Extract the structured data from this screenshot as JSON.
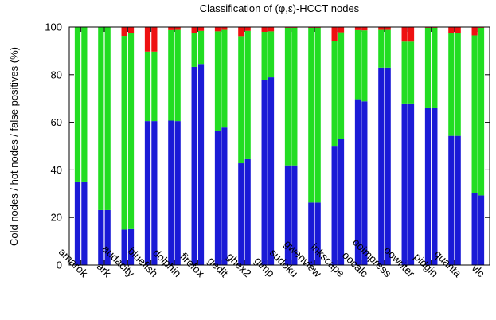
{
  "chart_data": {
    "type": "bar",
    "stacked": true,
    "title": "Classification of (φ,ε)-HCCT nodes",
    "ylabel": "Cold nodes / hot nodes / false positives (%)",
    "xlabel": "",
    "ylim": [
      0,
      100
    ],
    "yticks": [
      0,
      20,
      40,
      60,
      80,
      100
    ],
    "grid": false,
    "colors": {
      "cold": "#1a1ad6",
      "hot": "#22dd22",
      "false_positives": "#ee1111"
    },
    "categories": [
      "amarok",
      "ark",
      "audacity",
      "bluefish",
      "dolphin",
      "firefox",
      "gedit",
      "ghex2",
      "gimp",
      "sudoku",
      "gwenview",
      "inkscape",
      "oocalc",
      "ooimpress",
      "oowriter",
      "pidgin",
      "quanta",
      "vlc"
    ],
    "bars_per_category": 2,
    "series": [
      {
        "key": "cold",
        "values": [
          [
            34.8,
            34.8
          ],
          [
            23.1,
            23.1
          ],
          [
            14.9,
            15.1
          ],
          [
            60.5,
            60.5
          ],
          [
            60.7,
            60.5
          ],
          [
            83.3,
            84.2
          ],
          [
            56.2,
            57.8
          ],
          [
            42.8,
            44.5
          ],
          [
            77.7,
            78.9
          ],
          [
            41.9,
            41.9
          ],
          [
            26.3,
            26.3
          ],
          [
            49.8,
            53.0
          ],
          [
            69.7,
            68.8
          ],
          [
            83.0,
            83.0
          ],
          [
            67.6,
            67.6
          ],
          [
            65.9,
            65.9
          ],
          [
            54.3,
            54.3
          ],
          [
            30.1,
            29.3
          ]
        ]
      },
      {
        "key": "hot",
        "values": [
          [
            65.2,
            65.2
          ],
          [
            76.9,
            76.9
          ],
          [
            81.4,
            82.3
          ],
          [
            29.2,
            29.2
          ],
          [
            38.0,
            38.3
          ],
          [
            14.2,
            14.2
          ],
          [
            42.0,
            41.0
          ],
          [
            53.4,
            53.9
          ],
          [
            20.3,
            19.3
          ],
          [
            57.8,
            57.8
          ],
          [
            73.4,
            73.4
          ],
          [
            44.3,
            44.8
          ],
          [
            29.0,
            29.8
          ],
          [
            15.8,
            15.8
          ],
          [
            26.3,
            26.3
          ],
          [
            33.8,
            33.8
          ],
          [
            43.2,
            43.2
          ],
          [
            66.4,
            70.4
          ]
        ]
      },
      {
        "key": "false_positives",
        "values": [
          [
            0,
            0
          ],
          [
            0,
            0
          ],
          [
            3.7,
            2.6
          ],
          [
            10.3,
            10.3
          ],
          [
            1.3,
            1.2
          ],
          [
            2.5,
            1.6
          ],
          [
            1.8,
            1.2
          ],
          [
            3.8,
            1.6
          ],
          [
            2.0,
            1.8
          ],
          [
            0.3,
            0.3
          ],
          [
            0.3,
            0.3
          ],
          [
            5.9,
            2.2
          ],
          [
            1.3,
            1.4
          ],
          [
            1.2,
            1.2
          ],
          [
            6.1,
            6.1
          ],
          [
            0.3,
            0.3
          ],
          [
            2.5,
            2.5
          ],
          [
            3.5,
            0.3
          ]
        ]
      }
    ]
  }
}
